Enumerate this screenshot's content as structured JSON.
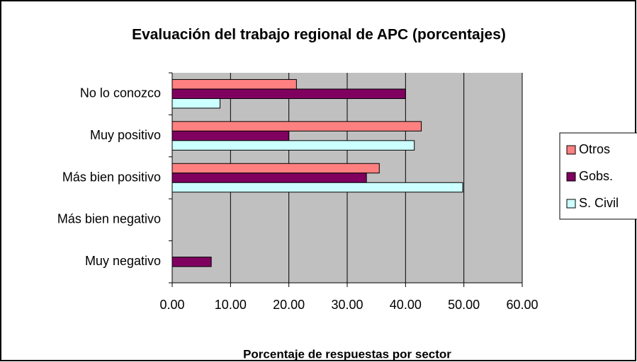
{
  "chart_data": {
    "type": "bar",
    "orientation": "horizontal",
    "title": "Evaluación del trabajo regional de APC (porcentajes)",
    "x_label": "Porcentaje de respuestas por sector",
    "categories": [
      "No lo conozco",
      "Muy positivo",
      "Más bien positivo",
      "Más bien negativo",
      "Muy negativo"
    ],
    "series": [
      {
        "name": "Otros",
        "color": "#ff8080",
        "values": [
          21.3,
          42.7,
          35.5,
          0,
          0
        ]
      },
      {
        "name": "Gobs.",
        "color": "#800060",
        "values": [
          40,
          20,
          33.3,
          0,
          6.7
        ]
      },
      {
        "name": "S. Civil",
        "color": "#ccffff",
        "values": [
          8.2,
          41.5,
          49.8,
          0,
          0
        ]
      }
    ],
    "xlim": [
      0,
      60
    ],
    "xticks": [
      {
        "value": 0,
        "label": "0.00"
      },
      {
        "value": 10,
        "label": "10.00"
      },
      {
        "value": 20,
        "label": "20.00"
      },
      {
        "value": 30,
        "label": "30.00"
      },
      {
        "value": 40,
        "label": "40.00"
      },
      {
        "value": 50,
        "label": "50.00"
      },
      {
        "value": 60,
        "label": "60.00"
      }
    ],
    "grid": true,
    "legend": "right"
  }
}
